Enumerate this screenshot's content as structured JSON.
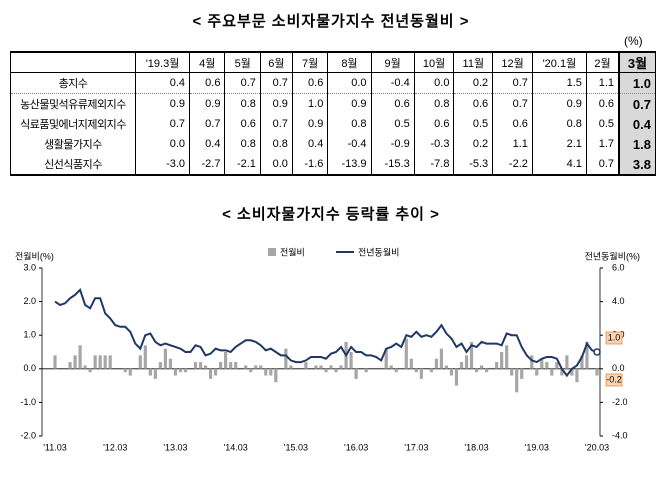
{
  "table": {
    "title": "< 주요부문 소비자물가지수 전년동월비 >",
    "unit": "(%)",
    "header": [
      "'19.3월",
      "4월",
      "5월",
      "6월",
      "7월",
      "8월",
      "9월",
      "10월",
      "11월",
      "12월",
      "'20.1월",
      "2월",
      "3월"
    ],
    "rows": [
      {
        "label": "총지수",
        "values": [
          "0.4",
          "0.6",
          "0.7",
          "0.7",
          "0.6",
          "0.0",
          "-0.4",
          "0.0",
          "0.2",
          "0.7",
          "1.5",
          "1.1",
          "1.0"
        ]
      },
      {
        "label": "농산물및석유류제외지수",
        "values": [
          "0.9",
          "0.9",
          "0.8",
          "0.9",
          "1.0",
          "0.9",
          "0.6",
          "0.8",
          "0.6",
          "0.7",
          "0.9",
          "0.6",
          "0.7"
        ]
      },
      {
        "label": "식료품및에너지제외지수",
        "values": [
          "0.7",
          "0.7",
          "0.6",
          "0.7",
          "0.9",
          "0.8",
          "0.5",
          "0.6",
          "0.5",
          "0.6",
          "0.8",
          "0.5",
          "0.4"
        ]
      },
      {
        "label": "생활물가지수",
        "values": [
          "0.0",
          "0.4",
          "0.8",
          "0.8",
          "0.4",
          "-0.4",
          "-0.9",
          "-0.3",
          "0.2",
          "1.1",
          "2.1",
          "1.7",
          "1.8"
        ]
      },
      {
        "label": "신선식품지수",
        "values": [
          "-3.0",
          "-2.7",
          "-2.1",
          "0.0",
          "-1.6",
          "-13.9",
          "-15.3",
          "-7.8",
          "-5.3",
          "-2.2",
          "4.1",
          "0.7",
          "3.8"
        ]
      }
    ]
  },
  "chart_data": {
    "type": "combo",
    "title": "< 소비자물가지수 등락률 추이 >",
    "ylabel": "전월비(%)",
    "y2label": "전년동월비(%)",
    "categories": [
      "'11.03",
      null,
      null,
      null,
      null,
      null,
      null,
      null,
      null,
      null,
      null,
      null,
      "'12.03",
      null,
      null,
      null,
      null,
      null,
      null,
      null,
      null,
      null,
      null,
      null,
      "'13.03",
      null,
      null,
      null,
      null,
      null,
      null,
      null,
      null,
      null,
      null,
      null,
      "'14.03",
      null,
      null,
      null,
      null,
      null,
      null,
      null,
      null,
      null,
      null,
      null,
      "'15.03",
      null,
      null,
      null,
      null,
      null,
      null,
      null,
      null,
      null,
      null,
      null,
      "'16.03",
      null,
      null,
      null,
      null,
      null,
      null,
      null,
      null,
      null,
      null,
      null,
      "'17.03",
      null,
      null,
      null,
      null,
      null,
      null,
      null,
      null,
      null,
      null,
      null,
      "'18.03",
      null,
      null,
      null,
      null,
      null,
      null,
      null,
      null,
      null,
      null,
      null,
      "'19.03",
      null,
      null,
      null,
      null,
      null,
      null,
      null,
      null,
      null,
      null,
      null,
      "'20.03"
    ],
    "series": [
      {
        "name": "전월비",
        "type": "bar",
        "color": "#a6a6a6",
        "values": [
          0.4,
          0.0,
          0.0,
          0.2,
          0.4,
          0.7,
          0.1,
          -0.1,
          0.4,
          0.4,
          0.4,
          0.4,
          0.0,
          0.0,
          -0.1,
          -0.2,
          0.0,
          0.4,
          0.7,
          -0.2,
          -0.3,
          0.2,
          0.6,
          0.3,
          -0.2,
          -0.1,
          -0.1,
          0.0,
          0.2,
          0.2,
          0.1,
          -0.3,
          -0.2,
          0.2,
          0.5,
          0.2,
          0.2,
          0.0,
          0.1,
          -0.1,
          0.1,
          0.1,
          -0.2,
          -0.2,
          -0.4,
          0.0,
          0.6,
          0.1,
          0.0,
          0.0,
          0.2,
          0.0,
          0.1,
          0.1,
          -0.1,
          0.1,
          -0.1,
          0.1,
          0.8,
          0.5,
          -0.3,
          0.0,
          -0.1,
          0.0,
          0.0,
          0.0,
          0.6,
          0.1,
          -0.1,
          0.0,
          0.9,
          0.3,
          -0.1,
          -0.3,
          0.0,
          -0.1,
          0.3,
          0.6,
          0.1,
          -0.2,
          -0.5,
          0.2,
          0.4,
          0.8,
          -0.1,
          0.1,
          -0.1,
          0.0,
          0.2,
          0.5,
          0.7,
          -0.2,
          -0.7,
          -0.3,
          0.0,
          0.4,
          -0.2,
          0.3,
          0.2,
          -0.2,
          0.2,
          -0.2,
          0.4,
          -0.2,
          -0.4,
          0.4,
          0.8,
          0.0,
          -0.2
        ]
      },
      {
        "name": "전년동월비",
        "type": "line",
        "axis": "y2",
        "color": "#1f3864",
        "values": [
          4.0,
          3.8,
          3.9,
          4.2,
          4.4,
          4.7,
          3.8,
          3.6,
          4.2,
          4.2,
          3.3,
          3.0,
          2.6,
          2.5,
          2.5,
          2.2,
          1.5,
          1.2,
          2.0,
          2.1,
          1.6,
          1.4,
          1.5,
          1.4,
          1.3,
          1.2,
          1.0,
          1.0,
          1.4,
          1.3,
          0.8,
          0.9,
          1.2,
          1.1,
          1.1,
          1.0,
          1.3,
          1.5,
          1.7,
          1.7,
          1.6,
          1.4,
          1.1,
          1.2,
          1.0,
          0.8,
          0.8,
          0.5,
          0.4,
          0.4,
          0.5,
          0.7,
          0.7,
          0.7,
          0.6,
          0.9,
          1.0,
          1.3,
          0.8,
          1.3,
          1.0,
          1.0,
          0.8,
          0.8,
          0.7,
          0.5,
          1.2,
          1.3,
          1.5,
          1.3,
          2.0,
          1.9,
          2.2,
          1.9,
          2.0,
          1.9,
          2.2,
          2.6,
          2.1,
          1.8,
          1.3,
          1.5,
          1.0,
          1.4,
          1.3,
          1.6,
          1.5,
          1.5,
          1.5,
          1.4,
          2.1,
          2.0,
          2.0,
          1.3,
          0.8,
          0.5,
          0.4,
          0.6,
          0.7,
          0.7,
          0.6,
          0.0,
          -0.4,
          0.0,
          0.2,
          0.7,
          1.5,
          1.1,
          1.0
        ]
      }
    ],
    "ylim": [
      -2,
      3
    ],
    "yticks": [
      {
        "value": 3,
        "label": "3.0"
      },
      {
        "value": 2,
        "label": "2.0"
      },
      {
        "value": 1,
        "label": "1.0"
      },
      {
        "value": 0,
        "label": "0.0"
      },
      {
        "value": -1,
        "label": "-1.0"
      },
      {
        "value": -2,
        "label": "-2.0"
      }
    ],
    "y2lim": [
      -4,
      6
    ],
    "y2ticks": [
      {
        "value": 6,
        "label": "6.0"
      },
      {
        "value": 4,
        "label": "4.0"
      },
      {
        "value": 2,
        "label": "2.0"
      },
      {
        "value": 0,
        "label": "0.0"
      },
      {
        "value": -2,
        "label": "-2.0"
      },
      {
        "value": -4,
        "label": "-4.0"
      }
    ],
    "annotations": [
      "1.0",
      "-0.2"
    ],
    "legend": "top"
  }
}
